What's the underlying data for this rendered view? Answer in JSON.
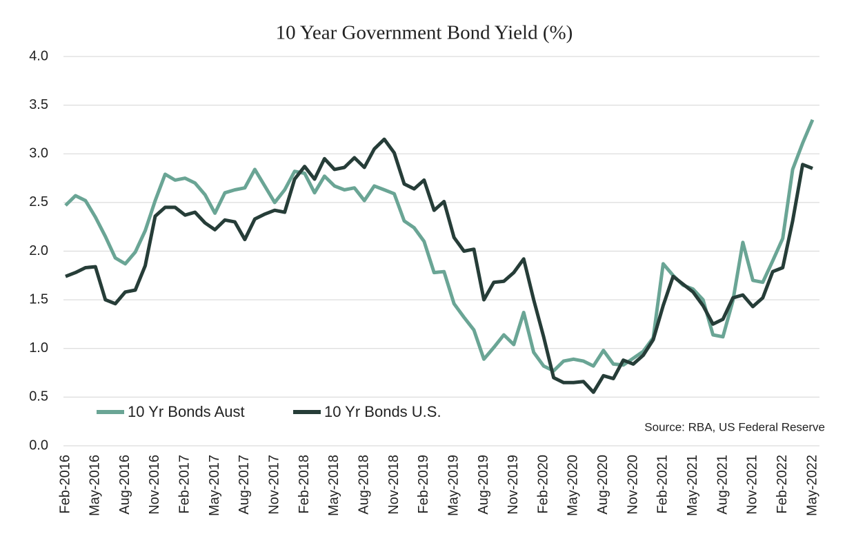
{
  "chart_data": {
    "type": "line",
    "title": "10 Year Government Bond Yield (%)",
    "source": "Source: RBA, US Federal Reserve",
    "categories": [
      "Feb-2016",
      null,
      null,
      "May-2016",
      null,
      null,
      "Aug-2016",
      null,
      null,
      "Nov-2016",
      null,
      null,
      "Feb-2017",
      null,
      null,
      "May-2017",
      null,
      null,
      "Aug-2017",
      null,
      null,
      "Nov-2017",
      null,
      null,
      "Feb-2018",
      null,
      null,
      "May-2018",
      null,
      null,
      "Aug-2018",
      null,
      null,
      "Nov-2018",
      null,
      null,
      "Feb-2019",
      null,
      null,
      "May-2019",
      null,
      null,
      "Aug-2019",
      null,
      null,
      "Nov-2019",
      null,
      null,
      "Feb-2020",
      null,
      null,
      "May-2020",
      null,
      null,
      "Aug-2020",
      null,
      null,
      "Nov-2020",
      null,
      null,
      "Feb-2021",
      null,
      null,
      "May-2021",
      null,
      null,
      "Aug-2021",
      null,
      null,
      "Nov-2021",
      null,
      null,
      "Feb-2022",
      null,
      null,
      "May-2022"
    ],
    "series": [
      {
        "name": "10 Yr Bonds Aust",
        "color": "#6aa595",
        "values": [
          2.47,
          2.57,
          2.52,
          2.35,
          2.15,
          1.93,
          1.87,
          1.99,
          2.21,
          2.52,
          2.79,
          2.73,
          2.75,
          2.7,
          2.58,
          2.39,
          2.6,
          2.63,
          2.65,
          2.84,
          2.67,
          2.5,
          2.63,
          2.82,
          2.8,
          2.6,
          2.77,
          2.67,
          2.63,
          2.65,
          2.52,
          2.67,
          2.63,
          2.59,
          2.31,
          2.24,
          2.1,
          1.78,
          1.79,
          1.46,
          1.32,
          1.19,
          0.89,
          1.01,
          1.14,
          1.04,
          1.37,
          0.96,
          0.82,
          0.77,
          0.87,
          0.89,
          0.87,
          0.82,
          0.98,
          0.84,
          0.83,
          0.9,
          0.97,
          1.11,
          1.87,
          1.75,
          1.65,
          1.61,
          1.5,
          1.14,
          1.12,
          1.49,
          2.09,
          1.7,
          1.68,
          1.9,
          2.13,
          2.84,
          3.11,
          3.35
        ]
      },
      {
        "name": "10 Yr Bonds U.S.",
        "color": "#263d38",
        "values": [
          1.74,
          1.78,
          1.83,
          1.84,
          1.5,
          1.46,
          1.58,
          1.6,
          1.85,
          2.36,
          2.45,
          2.45,
          2.37,
          2.4,
          2.29,
          2.22,
          2.32,
          2.3,
          2.12,
          2.33,
          2.38,
          2.42,
          2.4,
          2.74,
          2.87,
          2.74,
          2.95,
          2.84,
          2.86,
          2.96,
          2.86,
          3.05,
          3.15,
          3.01,
          2.69,
          2.64,
          2.73,
          2.42,
          2.51,
          2.14,
          2.0,
          2.02,
          1.5,
          1.68,
          1.69,
          1.78,
          1.92,
          1.5,
          1.12,
          0.7,
          0.65,
          0.65,
          0.66,
          0.55,
          0.72,
          0.69,
          0.88,
          0.84,
          0.93,
          1.09,
          1.44,
          1.74,
          1.66,
          1.58,
          1.44,
          1.25,
          1.3,
          1.52,
          1.55,
          1.43,
          1.52,
          1.79,
          1.83,
          2.31,
          2.89,
          2.85
        ]
      }
    ],
    "ylim": [
      0,
      4
    ],
    "yticks": [
      {
        "value": 0,
        "label": "0.0"
      },
      0.5,
      {
        "value": 1,
        "label": "1.0"
      },
      1.5,
      {
        "value": 2,
        "label": "2.0"
      },
      2.5,
      {
        "value": 3,
        "label": "3.0"
      },
      3.5,
      {
        "value": 4,
        "label": "4.0"
      }
    ],
    "grid": true,
    "legend": "bottom-left"
  }
}
